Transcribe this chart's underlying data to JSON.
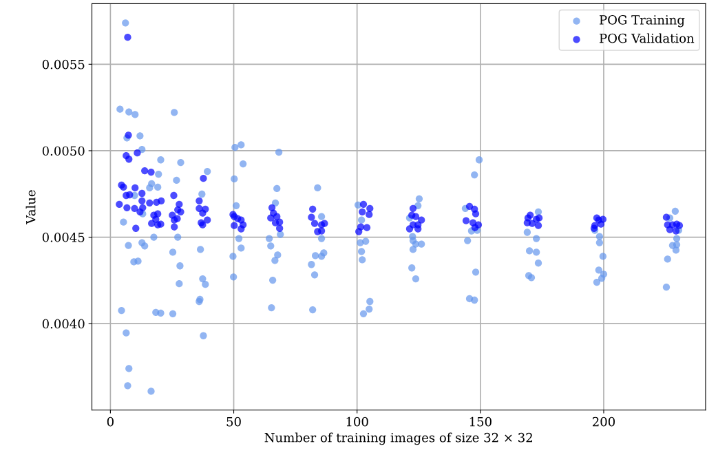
{
  "chart_data": {
    "type": "scatter",
    "xlabel": "Number of training images of size 32 × 32",
    "ylabel": "Value",
    "xlim": [
      -7.5,
      241.3
    ],
    "ylim": [
      0.0035,
      0.00585
    ],
    "xticks": [
      0,
      50,
      100,
      150,
      200
    ],
    "yticks": [
      {
        "value": 0.004,
        "label": "0.0040"
      },
      {
        "value": 0.0045,
        "label": "0.0045"
      },
      {
        "value": 0.005,
        "label": "0.0050"
      },
      {
        "value": 0.0055,
        "label": "0.0055"
      }
    ],
    "grid": true,
    "legend": "top right",
    "marker": "circle",
    "series": [
      {
        "name": "POG Training",
        "color": "#6495ed",
        "x": [
          6.1,
          3.9,
          7.5,
          10.0,
          6.7,
          12.0,
          12.8,
          20.4,
          19.5,
          16.7,
          19.2,
          15.9,
          9.8,
          13.1,
          5.3,
          7.3,
          12.8,
          13.9,
          9.5,
          11.2,
          17.6,
          4.5,
          6.4,
          7.5,
          7.0,
          16.5,
          18.4,
          20.4,
          25.9,
          28.5,
          26.8,
          27.3,
          25.3,
          28.2,
          27.9,
          25.3,
          39.3,
          37.1,
          36.5,
          37.4,
          38.5,
          36.0,
          36.3,
          37.7,
          50.5,
          53.0,
          53.8,
          50.2,
          51.0,
          52.1,
          53.0,
          49.7,
          49.9,
          68.3,
          67.5,
          66.9,
          68.9,
          64.4,
          65.0,
          67.8,
          66.7,
          65.8,
          65.3,
          84.0,
          85.6,
          85.6,
          83.1,
          86.5,
          85.6,
          81.5,
          82.8,
          82.0,
          100.4,
          101.8,
          101.3,
          103.5,
          101.8,
          102.1,
          105.2,
          104.9,
          102.6,
          125.2,
          124.7,
          121.3,
          122.5,
          122.7,
          123.8,
          126.1,
          122.7,
          122.2,
          123.8,
          149.5,
          147.6,
          143.9,
          146.4,
          148.7,
          144.8,
          148.1,
          145.6,
          147.6,
          173.5,
          169.0,
          172.7,
          169.9,
          172.7,
          173.5,
          169.6,
          170.7,
          196.4,
          198.3,
          198.3,
          199.7,
          198.0,
          200.0,
          199.2,
          197.2,
          229.0,
          226.8,
          230.4,
          229.6,
          227.9,
          229.6,
          229.3,
          225.9,
          225.4
        ],
        "values": [
          0.005739,
          0.00524,
          0.005224,
          0.005209,
          0.005074,
          0.005086,
          0.005007,
          0.004947,
          0.004864,
          0.004809,
          0.004789,
          0.004785,
          0.004741,
          0.004635,
          0.004587,
          0.004452,
          0.004468,
          0.004449,
          0.004357,
          0.004361,
          0.0045,
          0.004076,
          0.003946,
          0.00374,
          0.003641,
          0.003609,
          0.004065,
          0.004061,
          0.005221,
          0.004932,
          0.004829,
          0.0045,
          0.004413,
          0.004334,
          0.004231,
          0.004057,
          0.00488,
          0.004749,
          0.004429,
          0.004259,
          0.004227,
          0.004128,
          0.00414,
          0.00393,
          0.005019,
          0.005034,
          0.004924,
          0.004837,
          0.004682,
          0.004492,
          0.004437,
          0.004389,
          0.00427,
          0.004991,
          0.004781,
          0.004698,
          0.004516,
          0.004492,
          0.004449,
          0.004397,
          0.004365,
          0.004251,
          0.004092,
          0.004785,
          0.004619,
          0.004492,
          0.004393,
          0.004409,
          0.004389,
          0.004342,
          0.004282,
          0.00408,
          0.004686,
          0.004599,
          0.004468,
          0.004476,
          0.004417,
          0.004369,
          0.004128,
          0.004084,
          0.004057,
          0.004722,
          0.004682,
          0.004611,
          0.004504,
          0.00448,
          0.00446,
          0.00446,
          0.004429,
          0.004322,
          0.004259,
          0.004947,
          0.00486,
          0.004666,
          0.004536,
          0.00454,
          0.00448,
          0.004298,
          0.004144,
          0.004136,
          0.004646,
          0.004528,
          0.004492,
          0.004421,
          0.004413,
          0.00435,
          0.004278,
          0.004266,
          0.00454,
          0.004504,
          0.004468,
          0.004389,
          0.00431,
          0.004286,
          0.004262,
          0.004239,
          0.00465,
          0.004611,
          0.00454,
          0.004492,
          0.004452,
          0.004456,
          0.004425,
          0.004373,
          0.004211
        ]
      },
      {
        "name": "POG Validation",
        "color": "#0000ff",
        "x": [
          7.0,
          7.3,
          6.4,
          7.5,
          10.9,
          13.9,
          16.5,
          4.5,
          5.3,
          10.0,
          12.8,
          6.4,
          7.8,
          3.6,
          6.7,
          9.8,
          12.8,
          13.1,
          12.0,
          15.9,
          18.7,
          20.6,
          17.6,
          19.2,
          18.4,
          16.7,
          19.2,
          20.4,
          10.3,
          25.7,
          27.9,
          27.3,
          28.5,
          25.1,
          27.1,
          25.9,
          25.9,
          37.7,
          36.0,
          36.0,
          38.5,
          37.4,
          39.3,
          36.8,
          37.4,
          49.7,
          50.2,
          51.6,
          53.0,
          53.8,
          50.2,
          53.0,
          65.5,
          66.1,
          65.0,
          67.5,
          66.9,
          68.6,
          68.6,
          82.0,
          81.5,
          82.8,
          85.6,
          86.8,
          84.0,
          85.6,
          102.6,
          105.2,
          102.1,
          104.9,
          101.5,
          104.0,
          100.7,
          122.7,
          122.2,
          123.8,
          126.1,
          122.7,
          124.7,
          121.3,
          124.7,
          145.6,
          147.6,
          148.1,
          144.2,
          147.0,
          149.2,
          147.8,
          170.2,
          169.3,
          172.7,
          173.8,
          169.0,
          171.0,
          173.5,
          197.2,
          199.7,
          198.0,
          196.4,
          198.9,
          196.1,
          225.4,
          225.9,
          227.9,
          229.6,
          226.8,
          229.3,
          230.7
        ],
        "values": [
          0.005656,
          0.00509,
          0.004971,
          0.004951,
          0.004987,
          0.004884,
          0.004876,
          0.004801,
          0.004789,
          0.004785,
          0.004753,
          0.004741,
          0.004745,
          0.00469,
          0.00467,
          0.004666,
          0.00471,
          0.00467,
          0.004646,
          0.004698,
          0.004702,
          0.00471,
          0.004627,
          0.004635,
          0.004603,
          0.004579,
          0.004571,
          0.004575,
          0.004551,
          0.004741,
          0.00469,
          0.004658,
          0.004646,
          0.004627,
          0.004607,
          0.004599,
          0.004559,
          0.00484,
          0.00471,
          0.004666,
          0.004662,
          0.004639,
          0.004599,
          0.004583,
          0.004571,
          0.004631,
          0.004619,
          0.004607,
          0.004599,
          0.004571,
          0.004567,
          0.004548,
          0.00467,
          0.004639,
          0.004611,
          0.004619,
          0.004583,
          0.004587,
          0.004551,
          0.004662,
          0.004615,
          0.004579,
          0.004571,
          0.004579,
          0.004532,
          0.004536,
          0.00469,
          0.004666,
          0.004646,
          0.004631,
          0.004559,
          0.004555,
          0.004532,
          0.004666,
          0.004627,
          0.004619,
          0.004599,
          0.004571,
          0.004571,
          0.004548,
          0.004548,
          0.004678,
          0.004662,
          0.004635,
          0.004595,
          0.004583,
          0.004571,
          0.004555,
          0.004627,
          0.004611,
          0.004603,
          0.004611,
          0.004583,
          0.004579,
          0.004567,
          0.004611,
          0.004603,
          0.004599,
          0.004567,
          0.004575,
          0.004551,
          0.004615,
          0.004571,
          0.004571,
          0.004575,
          0.004544,
          0.004536,
          0.004567
        ]
      }
    ]
  }
}
